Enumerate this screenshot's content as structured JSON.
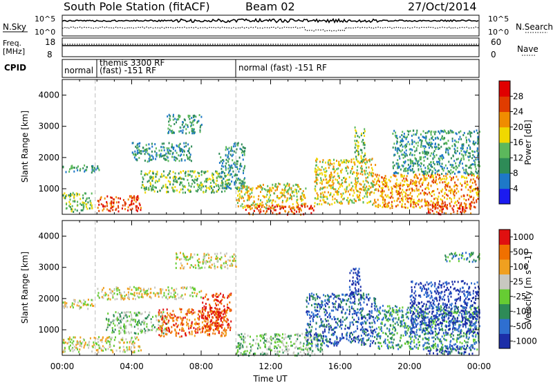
{
  "header": {
    "station": "South Pole Station (fitACF)",
    "beam": "Beam 02",
    "date": "27/Oct/2014"
  },
  "panels": {
    "nsky": {
      "label": "N.Sky",
      "left_ticks": [
        "10^5",
        "10^0"
      ],
      "right_ticks": [
        "10^5",
        "10^0"
      ],
      "right_label": "N.Search"
    },
    "freq": {
      "label_line1": "Freq.",
      "label_line2": "[MHz]",
      "left_ticks": [
        "18",
        "8"
      ],
      "right_ticks": [
        "60",
        "0"
      ],
      "right_label": "Nave"
    },
    "cpid": {
      "label": "CPID",
      "segments": [
        {
          "text": "normal",
          "start_hour": 0.0,
          "end_hour": 1.9
        },
        {
          "text": "themis 3300 RF",
          "start_hour": 1.9,
          "end_hour": 10.0,
          "row": 1
        },
        {
          "text": "(fast) -151 RF",
          "start_hour": 1.9,
          "end_hour": 10.0,
          "row": 2
        },
        {
          "text": "normal (fast) -151 RF",
          "start_hour": 10.0,
          "end_hour": 24.0
        }
      ]
    }
  },
  "chart_data": [
    {
      "type": "heatmap",
      "title": "",
      "xlabel": "",
      "ylabel": "Slant Range [km]",
      "xlim": [
        0,
        24
      ],
      "ylim": [
        180,
        4500
      ],
      "x_ticks": [
        "00:00",
        "04:00",
        "08:00",
        "12:00",
        "16:00",
        "20:00",
        "00:00"
      ],
      "y_ticks": [
        "1000",
        "2000",
        "3000",
        "4000"
      ],
      "y_tick_values": [
        1000,
        2000,
        3000,
        4000
      ],
      "colorbar": {
        "label": "Power [dB]",
        "ticks": [
          "4",
          "8",
          "12",
          "16",
          "20",
          "24",
          "28"
        ],
        "colors": [
          "#1b1bf0",
          "#1e78c8",
          "#2e8b57",
          "#5cb85c",
          "#f0d800",
          "#f08c00",
          "#e03c00",
          "#e00000"
        ]
      },
      "scatter_regions": [
        {
          "x": [
            0.0,
            2.1
          ],
          "y": [
            1550,
            1800
          ],
          "level": 2
        },
        {
          "x": [
            0.0,
            1.7
          ],
          "y": [
            280,
            900
          ],
          "level": 3
        },
        {
          "x": [
            2.0,
            4.5
          ],
          "y": [
            300,
            800
          ],
          "level": 6
        },
        {
          "x": [
            4.0,
            7.5
          ],
          "y": [
            1900,
            2500
          ],
          "level": 2
        },
        {
          "x": [
            4.5,
            9.5
          ],
          "y": [
            900,
            1600
          ],
          "level": 3
        },
        {
          "x": [
            6.0,
            8.0
          ],
          "y": [
            2800,
            3400
          ],
          "level": 2
        },
        {
          "x": [
            9.0,
            10.5
          ],
          "y": [
            1000,
            2500
          ],
          "level": 2
        },
        {
          "x": [
            10.0,
            14.0
          ],
          "y": [
            400,
            1200
          ],
          "level": 4
        },
        {
          "x": [
            10.5,
            14.5
          ],
          "y": [
            200,
            500
          ],
          "level": 6
        },
        {
          "x": [
            14.5,
            18.0
          ],
          "y": [
            500,
            2000
          ],
          "level": 4
        },
        {
          "x": [
            16.8,
            17.4
          ],
          "y": [
            1900,
            3000
          ],
          "level": 3
        },
        {
          "x": [
            18.0,
            24.0
          ],
          "y": [
            400,
            1500
          ],
          "level": 5
        },
        {
          "x": [
            19.0,
            24.0
          ],
          "y": [
            1500,
            2900
          ],
          "level": 2
        },
        {
          "x": [
            21.0,
            23.5
          ],
          "y": [
            200,
            600
          ],
          "level": 6
        }
      ]
    },
    {
      "type": "heatmap",
      "title": "",
      "xlabel": "Time UT",
      "ylabel": "Slant Range [km]",
      "xlim": [
        0,
        24
      ],
      "ylim": [
        180,
        4500
      ],
      "x_ticks": [
        "00:00",
        "04:00",
        "08:00",
        "12:00",
        "16:00",
        "20:00",
        "00:00"
      ],
      "y_ticks": [
        "1000",
        "2000",
        "3000",
        "4000"
      ],
      "y_tick_values": [
        1000,
        2000,
        3000,
        4000
      ],
      "colorbar": {
        "label": "Velocity [m s^-1]",
        "ticks": [
          "1000",
          "500",
          "100",
          "25",
          "-25",
          "-100",
          "-500",
          "-1000"
        ],
        "colors": [
          "#1c2ea8",
          "#2f6fd0",
          "#2e8b57",
          "#66cc33",
          "#c8c8c0",
          "#f0a020",
          "#f07000",
          "#e01010"
        ]
      },
      "scatter_regions": [
        {
          "x": [
            0.0,
            1.8
          ],
          "y": [
            1700,
            2000
          ],
          "level": 4
        },
        {
          "x": [
            0.0,
            4.5
          ],
          "y": [
            300,
            800
          ],
          "level": 4
        },
        {
          "x": [
            2.0,
            8.0
          ],
          "y": [
            2000,
            2400
          ],
          "level": 4
        },
        {
          "x": [
            2.5,
            6.0
          ],
          "y": [
            900,
            1600
          ],
          "level": 3
        },
        {
          "x": [
            5.5,
            9.5
          ],
          "y": [
            800,
            1700
          ],
          "level": 6
        },
        {
          "x": [
            8.0,
            9.7
          ],
          "y": [
            1000,
            2200
          ],
          "level": 7
        },
        {
          "x": [
            6.5,
            10.0
          ],
          "y": [
            3000,
            3500
          ],
          "level": 4
        },
        {
          "x": [
            10.0,
            15.0
          ],
          "y": [
            200,
            900
          ],
          "level": 3
        },
        {
          "x": [
            14.0,
            18.0
          ],
          "y": [
            500,
            2200
          ],
          "level": 1
        },
        {
          "x": [
            16.5,
            17.2
          ],
          "y": [
            2000,
            3000
          ],
          "level": 0
        },
        {
          "x": [
            18.0,
            24.0
          ],
          "y": [
            400,
            1800
          ],
          "level": 2
        },
        {
          "x": [
            20.0,
            24.0
          ],
          "y": [
            900,
            2600
          ],
          "level": 0
        },
        {
          "x": [
            22.0,
            24.0
          ],
          "y": [
            3200,
            3500
          ],
          "level": 2
        },
        {
          "x": [
            21.0,
            23.8
          ],
          "y": [
            250,
            550
          ],
          "level": 1
        }
      ]
    }
  ]
}
